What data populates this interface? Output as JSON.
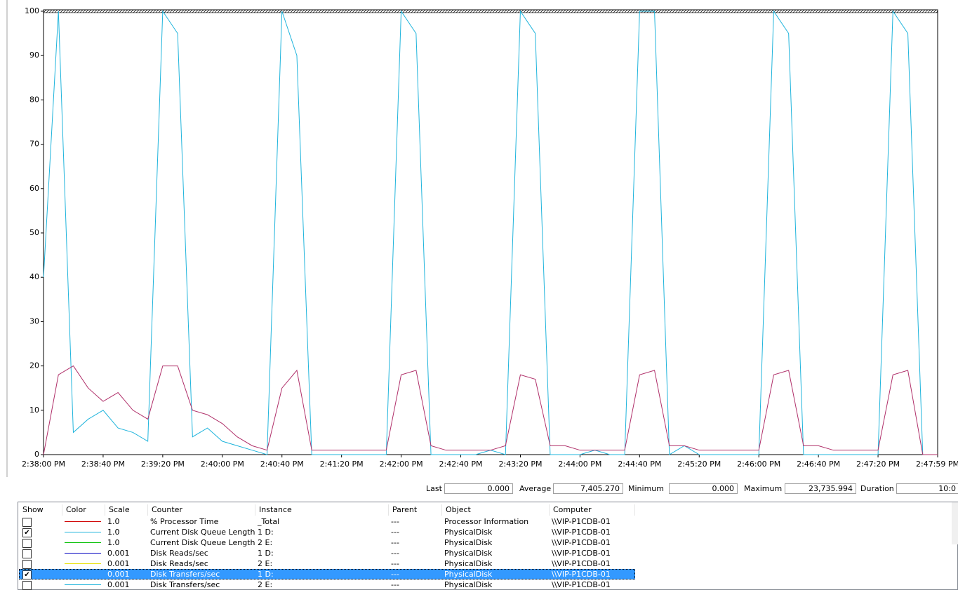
{
  "chart_data": {
    "type": "line",
    "categories": [
      "2:38:00 PM",
      null,
      null,
      null,
      "2:38:40 PM",
      null,
      null,
      null,
      "2:39:20 PM",
      null,
      null,
      null,
      "2:40:00 PM",
      null,
      null,
      null,
      "2:40:40 PM",
      null,
      null,
      null,
      "2:41:20 PM",
      null,
      null,
      null,
      "2:42:00 PM",
      null,
      null,
      null,
      "2:42:40 PM",
      null,
      null,
      null,
      "2:43:20 PM",
      null,
      null,
      null,
      "2:44:00 PM",
      null,
      null,
      null,
      "2:44:40 PM",
      null,
      null,
      null,
      "2:45:20 PM",
      null,
      null,
      null,
      "2:46:00 PM",
      null,
      null,
      null,
      "2:46:40 PM",
      null,
      null,
      null,
      "2:47:20 PM",
      null,
      null,
      null,
      "2:47:59 PM"
    ],
    "series": [
      {
        "name": "Current Disk Queue Length",
        "color": "#1fb4dc",
        "values": [
          40,
          100,
          5,
          8,
          10,
          6,
          5,
          3,
          100,
          95,
          4,
          6,
          3,
          2,
          1,
          0,
          100,
          90,
          0,
          0,
          0,
          0,
          0,
          0,
          100,
          95,
          0,
          0,
          0,
          0,
          1,
          0,
          100,
          95,
          0,
          0,
          0,
          1,
          0,
          0,
          100,
          100,
          0,
          2,
          0,
          0,
          0,
          0,
          0,
          100,
          95,
          0,
          0,
          0,
          0,
          0,
          0,
          100,
          95,
          0,
          0
        ]
      },
      {
        "name": "Disk Transfers/sec",
        "color": "#b0306a",
        "values": [
          0,
          18,
          20,
          15,
          12,
          14,
          10,
          8,
          20,
          20,
          10,
          9,
          7,
          4,
          2,
          1,
          15,
          19,
          1,
          1,
          1,
          1,
          1,
          1,
          18,
          19,
          2,
          1,
          1,
          1,
          1,
          2,
          18,
          17,
          2,
          2,
          1,
          1,
          1,
          1,
          18,
          19,
          2,
          2,
          1,
          1,
          1,
          1,
          1,
          18,
          19,
          2,
          2,
          1,
          1,
          1,
          1,
          18,
          19,
          0,
          0
        ]
      }
    ],
    "ylim": [
      0,
      100
    ],
    "yticks": [
      0,
      10,
      20,
      30,
      40,
      50,
      60,
      70,
      80,
      90,
      100
    ],
    "grid": false
  },
  "stats": [
    {
      "label": "Last",
      "value": "0.000"
    },
    {
      "label": "Average",
      "value": "7,405.270"
    },
    {
      "label": "Minimum",
      "value": "0.000"
    },
    {
      "label": "Maximum",
      "value": "23,735.994"
    },
    {
      "label": "Duration",
      "value": "10:0"
    }
  ],
  "table": {
    "columns": [
      "Show",
      "Color",
      "Scale",
      "Counter",
      "Instance",
      "Parent",
      "Object",
      "Computer"
    ],
    "rows": [
      {
        "shown": false,
        "color": "#d00000",
        "cells": [
          "1.0",
          "% Processor Time",
          "_Total",
          "---",
          "Processor Information",
          "\\\\VIP-P1CDB-01"
        ]
      },
      {
        "shown": true,
        "color": "#1fb4dc",
        "cells": [
          "1.0",
          "Current Disk Queue Length",
          "1 D:",
          "---",
          "PhysicalDisk",
          "\\\\VIP-P1CDB-01"
        ]
      },
      {
        "shown": false,
        "color": "#00c000",
        "cells": [
          "1.0",
          "Current Disk Queue Length",
          "2 E:",
          "---",
          "PhysicalDisk",
          "\\\\VIP-P1CDB-01"
        ]
      },
      {
        "shown": false,
        "color": "#0000c0",
        "cells": [
          "0.001",
          "Disk Reads/sec",
          "1 D:",
          "---",
          "PhysicalDisk",
          "\\\\VIP-P1CDB-01"
        ]
      },
      {
        "shown": false,
        "color": "#e8e000",
        "cells": [
          "0.001",
          "Disk Reads/sec",
          "2 E:",
          "---",
          "PhysicalDisk",
          "\\\\VIP-P1CDB-01"
        ]
      },
      {
        "shown": true,
        "color": "#b0306a",
        "selected": true,
        "cells": [
          "0.001",
          "Disk Transfers/sec",
          "1 D:",
          "---",
          "PhysicalDisk",
          "\\\\VIP-P1CDB-01"
        ]
      },
      {
        "shown": false,
        "color": "#1fb4dc",
        "cells": [
          "0.001",
          "Disk Transfers/sec",
          "2 E:",
          "---",
          "PhysicalDisk",
          "\\\\VIP-P1CDB-01"
        ]
      }
    ]
  }
}
